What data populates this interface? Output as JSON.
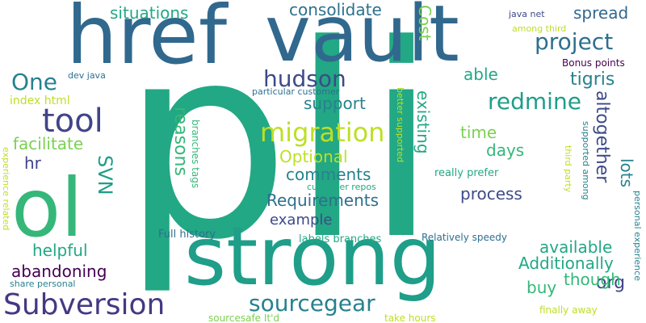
{
  "words": {
    "pli": "pli",
    "href": "href",
    "vault": "vault",
    "strong": "strong",
    "ol": "ol",
    "tool": "tool",
    "one": "One",
    "subversion": "Subversion",
    "sourcegear": "sourcegear",
    "migration": "migration",
    "hudson": "hudson",
    "redmine": "redmine",
    "project": "project",
    "cost": "Cost",
    "situations": "situations",
    "consolidate": "consolidate",
    "spread": "spread",
    "tigris": "tigris",
    "able": "able",
    "support": "support",
    "existing": "existing",
    "time": "time",
    "days": "days",
    "altogether": "altogether",
    "lots": "lots",
    "process": "process",
    "org": "org",
    "available": "available",
    "additionally": "Additionally",
    "though": "though",
    "buy": "buy",
    "facilitate": "facilitate",
    "hr": "hr",
    "svn": "SVN",
    "reasons": "reasons",
    "optional": "Optional",
    "comments": "comments",
    "requirements": "Requirements",
    "example": "example",
    "helpful": "helpful",
    "abandoning": "abandoning",
    "full_history": "Full history",
    "labels_branches": "labels branches",
    "relatively_speedy": "Relatively speedy",
    "index_html": "index html",
    "dev_java": "dev java",
    "particular_customer": "particular customer",
    "branches_tags": "branches tags",
    "customer_repos": "customer repos",
    "better_supported": "better supported",
    "really_prefer": "really prefer",
    "bonus_points": "Bonus points",
    "java_net": "java net",
    "among_third": "among third",
    "third_party": "third party",
    "supported_among": "supported among",
    "personal_experience": "personal experience",
    "experience_related": "experience related",
    "share_personal": "share personal",
    "sourcesafe_itd": "sourcesafe It'd",
    "take_hours": "take hours",
    "finally_away": "finally away"
  }
}
